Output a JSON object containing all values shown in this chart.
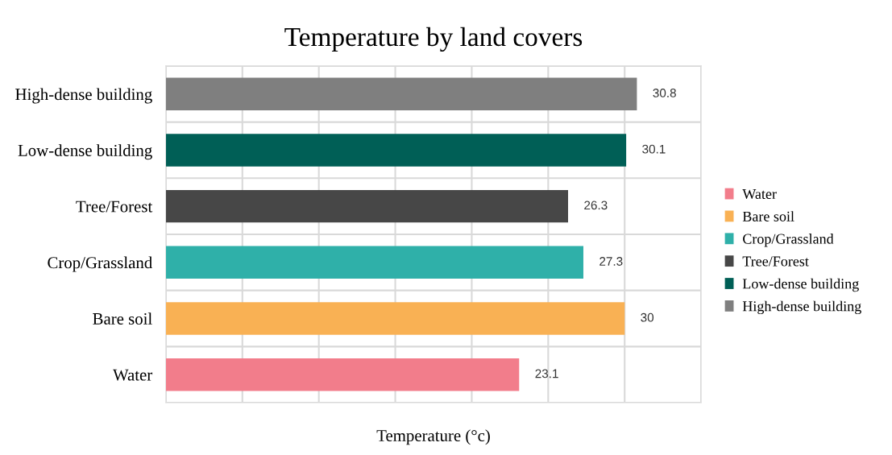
{
  "chart_data": {
    "type": "bar",
    "orientation": "horizontal",
    "stacked": true,
    "title": "Temperature by land covers",
    "xlabel": "Temperature (°c)",
    "categories": [
      "High-dense building",
      "Low-dense building",
      "Tree/Forest",
      "Crop/Grassland",
      "Bare soil",
      "Water"
    ],
    "series": [
      {
        "name": "Water",
        "color": "#f27d8b",
        "values": [
          null,
          null,
          null,
          null,
          null,
          23.1
        ]
      },
      {
        "name": "Bare soil",
        "color": "#f9b154",
        "values": [
          null,
          null,
          null,
          null,
          30,
          null
        ]
      },
      {
        "name": "Crop/Grassland",
        "color": "#2fb0a9",
        "values": [
          null,
          null,
          null,
          27.3,
          null,
          null
        ]
      },
      {
        "name": "Tree/Forest",
        "color": "#474747",
        "values": [
          null,
          null,
          26.3,
          null,
          null,
          null
        ]
      },
      {
        "name": "Low-dense building",
        "color": "#005f56",
        "values": [
          null,
          30.1,
          null,
          null,
          null,
          null
        ]
      },
      {
        "name": "High-dense building",
        "color": "#7f7f7f",
        "values": [
          30.8,
          null,
          null,
          null,
          null,
          null
        ]
      }
    ],
    "xlim": [
      0,
      35
    ],
    "xticks": [
      {
        "value": 0,
        "label": null
      },
      {
        "value": 5,
        "label": null
      },
      {
        "value": 10,
        "label": null
      },
      {
        "value": 15,
        "label": null
      },
      {
        "value": 20,
        "label": null
      },
      {
        "value": 25,
        "label": null
      },
      {
        "value": 30,
        "label": null
      },
      {
        "value": 35,
        "label": null
      }
    ],
    "tick_labels": "y",
    "grid": "x",
    "data_labels": true,
    "legend": "right"
  }
}
